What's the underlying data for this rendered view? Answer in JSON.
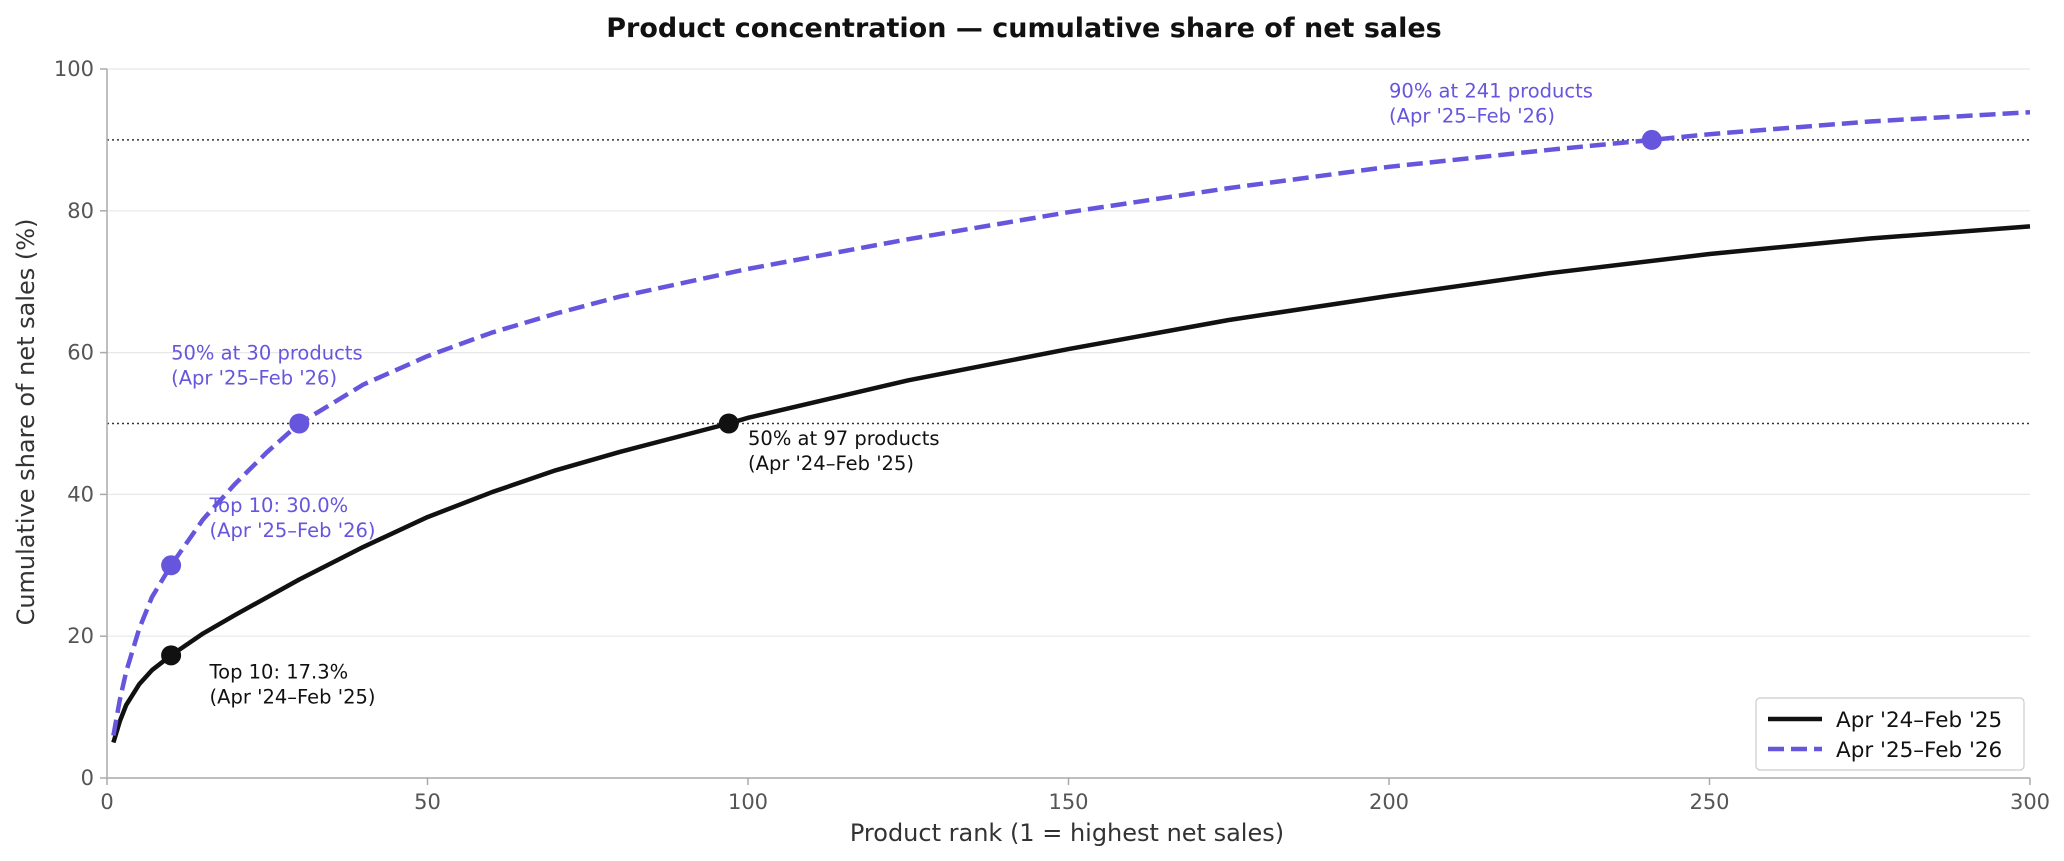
{
  "chart_data": {
    "type": "line",
    "title": "Product concentration — cumulative share of net sales",
    "xlabel": "Product rank (1 = highest net sales)",
    "ylabel": "Cumulative share of net sales (%)",
    "xlim": [
      0,
      300
    ],
    "ylim": [
      0,
      100
    ],
    "x_ticks": [
      0,
      50,
      100,
      150,
      200,
      250,
      300
    ],
    "y_ticks": [
      0,
      20,
      40,
      60,
      80,
      100
    ],
    "grid": "horizontal",
    "reference_lines_y": [
      50,
      90
    ],
    "legend_position": "bottom-right",
    "series": [
      {
        "name": "Apr '24–Feb '25",
        "color": "#111111",
        "style": "solid",
        "x": [
          1,
          2,
          3,
          5,
          7,
          10,
          15,
          20,
          30,
          40,
          50,
          60,
          70,
          80,
          97,
          100,
          125,
          150,
          175,
          200,
          225,
          250,
          275,
          300
        ],
        "y": [
          5.0,
          8.0,
          10.3,
          13.2,
          15.2,
          17.3,
          20.4,
          23.0,
          28.0,
          32.6,
          36.8,
          40.3,
          43.4,
          46.0,
          50.0,
          50.8,
          56.1,
          60.5,
          64.6,
          68.0,
          71.2,
          73.9,
          76.1,
          77.8
        ]
      },
      {
        "name": "Apr '25–Feb '26",
        "color": "#6655dd",
        "style": "dashed",
        "x": [
          1,
          2,
          3,
          5,
          7,
          10,
          15,
          20,
          25,
          30,
          40,
          50,
          60,
          70,
          80,
          100,
          125,
          150,
          175,
          200,
          225,
          241,
          250,
          275,
          300
        ],
        "y": [
          6.0,
          11.0,
          15.0,
          21.0,
          25.5,
          30.0,
          36.5,
          41.5,
          46.0,
          50.0,
          55.5,
          59.5,
          62.8,
          65.5,
          67.9,
          71.8,
          76.0,
          79.8,
          83.2,
          86.2,
          88.6,
          90.0,
          90.8,
          92.6,
          93.9
        ]
      }
    ],
    "markers": [
      {
        "series": 1,
        "x": 10,
        "y": 30.0,
        "color": "#6655dd"
      },
      {
        "series": 1,
        "x": 30,
        "y": 50.0,
        "color": "#6655dd"
      },
      {
        "series": 1,
        "x": 241,
        "y": 90.0,
        "color": "#6655dd"
      },
      {
        "series": 0,
        "x": 10,
        "y": 17.3,
        "color": "#111111"
      },
      {
        "series": 0,
        "x": 97,
        "y": 50.0,
        "color": "#111111"
      }
    ],
    "annotations": [
      {
        "line1": "50% at 30 products",
        "line2": "(Apr '25–Feb '26)",
        "color": "#6655dd",
        "ax": 10,
        "ay": 59
      },
      {
        "line1": "Top 10: 30.0%",
        "line2": "(Apr '25–Feb '26)",
        "color": "#6655dd",
        "ax": 16,
        "ay": 37.5
      },
      {
        "line1": "90% at 241 products",
        "line2": "(Apr '25–Feb '26)",
        "color": "#6655dd",
        "ax": 200,
        "ay": 96
      },
      {
        "line1": "50% at 97 products",
        "line2": "(Apr '24–Feb '25)",
        "color": "#111111",
        "ax": 100,
        "ay": 47
      },
      {
        "line1": "Top 10: 17.3%",
        "line2": "(Apr '24–Feb '25)",
        "color": "#111111",
        "ax": 16,
        "ay": 14
      }
    ]
  }
}
